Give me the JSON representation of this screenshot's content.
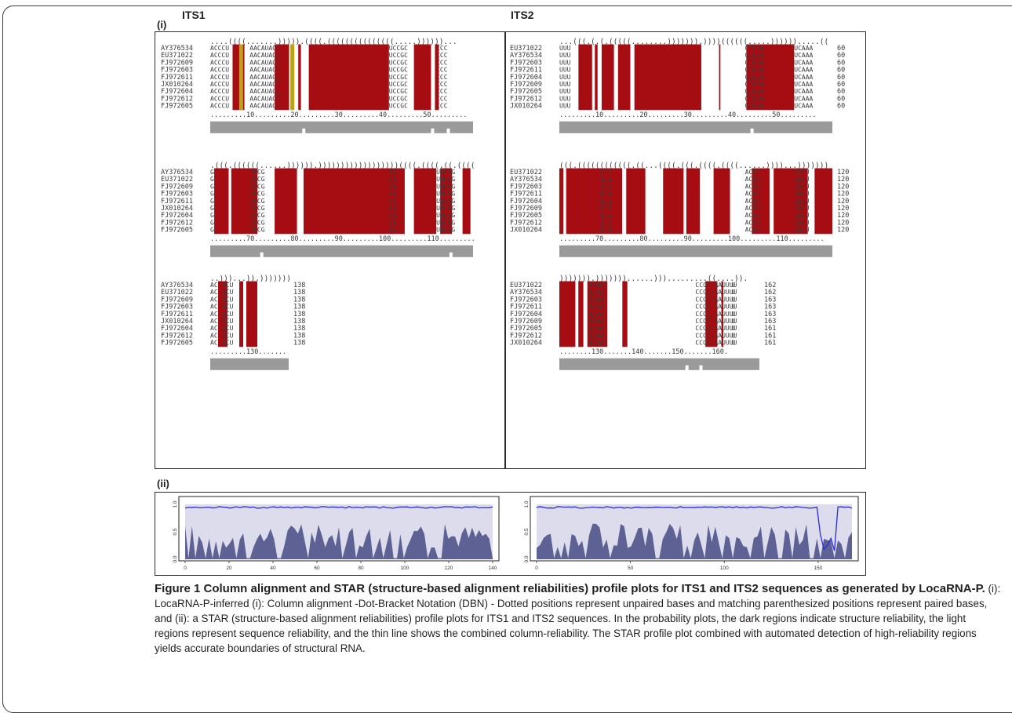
{
  "labels": {
    "its1": "ITS1",
    "its2": "ITS2",
    "panel_i": "(i)",
    "panel_ii": "(ii)"
  },
  "blocks": [
    {
      "dbn": "....((((.......))))).((((.(((((((((((((((.....))))))...",
      "ids": [
        "AY376534",
        "EU371022",
        "FJ972609",
        "FJ972603",
        "FJ972611",
        "JX010264",
        "FJ972604",
        "FJ972612",
        "FJ972605"
      ],
      "prefix": "ACCCU",
      "mid": "AACAUACC",
      "tail": "UCCGC",
      "end": "CCC",
      "num": "60",
      "ruler": ".........10.........20.........30.........40.........50.........",
      "hl_gold": [
        2,
        6
      ]
    },
    {
      "dbn": "...(((.(.(.(((((........))))))).))))((((((.....)))))).....((",
      "ids": [
        "EU371022",
        "AY376534",
        "FJ972603",
        "FJ972611",
        "FJ972604",
        "FJ972609",
        "FJ972605",
        "FJ972612",
        "JX010264"
      ],
      "prefix": "UUU",
      "mid": "",
      "tail": "GCCGA",
      "end": "UCAAA",
      "num": "60",
      "ruler": ".........10.........20.........30.........40.........50.........",
      "hl_gold": []
    },
    {
      "dbn": ".(((.((((((......)))))).))))))))))))))))))((((.((((.((.((((.",
      "ids": [
        "AY376534",
        "EU371022",
        "FJ972609",
        "FJ972603",
        "FJ972611",
        "JX010264",
        "FJ972604",
        "FJ972612",
        "FJ972605"
      ],
      "prefix": "G",
      "mid": "UCCG",
      "tail": "AA",
      "end": "UUGAG",
      "num": "120",
      "ruler": ".........70.........80.........90.........100.........110.........",
      "hl_gold": []
    },
    {
      "dbn": "(((.((((((((((((.((...((((.(((.((((.((((......))))...)))))))",
      "ids": [
        "EU371022",
        "AY376534",
        "FJ972603",
        "FJ972611",
        "FJ972604",
        "FJ972609",
        "FJ972605",
        "FJ972612",
        "JX010264"
      ],
      "prefix": "",
      "mid": "GCG",
      "tail": "ACUU",
      "end": "GUCU",
      "num": "120",
      "ruler": ".........70.........80.........90.........100.........110.........",
      "hl_gold": []
    },
    {
      "dbn": "..)))...)).)))))))",
      "ids": [
        "AY376534",
        "EU371022",
        "FJ972609",
        "FJ972603",
        "FJ972611",
        "JX010264",
        "FJ972604",
        "FJ972612",
        "FJ972605"
      ],
      "prefix": "AC",
      "mid": "UCU",
      "tail": "",
      "end": "",
      "num": "138",
      "ruler": ".........130.......",
      "hl_gold": []
    },
    {
      "dbn": "))))))).)))))))......))).........((....)).",
      "ids": [
        "EU371022",
        "AY376534",
        "FJ972603",
        "FJ972611",
        "FJ972604",
        "FJ972609",
        "FJ972605",
        "FJ972612",
        "JX010264"
      ],
      "prefix": "",
      "mid": "UAAA",
      "tail": "CCCC-AAUUUU",
      "end": "U",
      "nums": [
        "162",
        "162",
        "163",
        "163",
        "163",
        "163",
        "161",
        "161",
        "161"
      ],
      "ruler": "........130.......140.......150.......160.",
      "hl_gold": []
    }
  ],
  "plots": [
    {
      "yticks": [
        "1.0",
        "0.5",
        "0.0"
      ],
      "xticks": [
        "0",
        "20",
        "40",
        "60",
        "80",
        "100",
        "120",
        "140"
      ],
      "xmax": 140
    },
    {
      "yticks": [
        "1.0",
        "0.5",
        "0.0"
      ],
      "xticks": [
        "0",
        "50",
        "100",
        "150"
      ],
      "xmax": 168
    }
  ],
  "caption": {
    "title": "Figure 1 Column alignment and STAR (structure-based alignment reliabilities) profile plots for ITS1 and ITS2 sequences as generated by LocaRNA-P.",
    "body": " (i): LocaRNA-P-inferred (i): Column alignment -Dot-Bracket Notation (DBN) - Dotted positions represent unpaired bases and matching parenthesized positions represent paired bases, and (ii): a STAR (structure-based alignment reliabilities) profile plots for ITS1 and ITS2 sequences. In the probability plots, the dark regions indicate structure reliability, the light regions represent sequence reliability, and the thin line shows the combined column-reliability. The STAR profile plot combined with automated detection of high-reliability regions yields accurate boundaries of structural RNA."
  },
  "colors": {
    "red": "#a50d12",
    "gold": "#b8a414",
    "gray": "#9a9a9a",
    "light": "#dcdcec",
    "dark": "#5e6194",
    "line": "#2b2bd9"
  }
}
